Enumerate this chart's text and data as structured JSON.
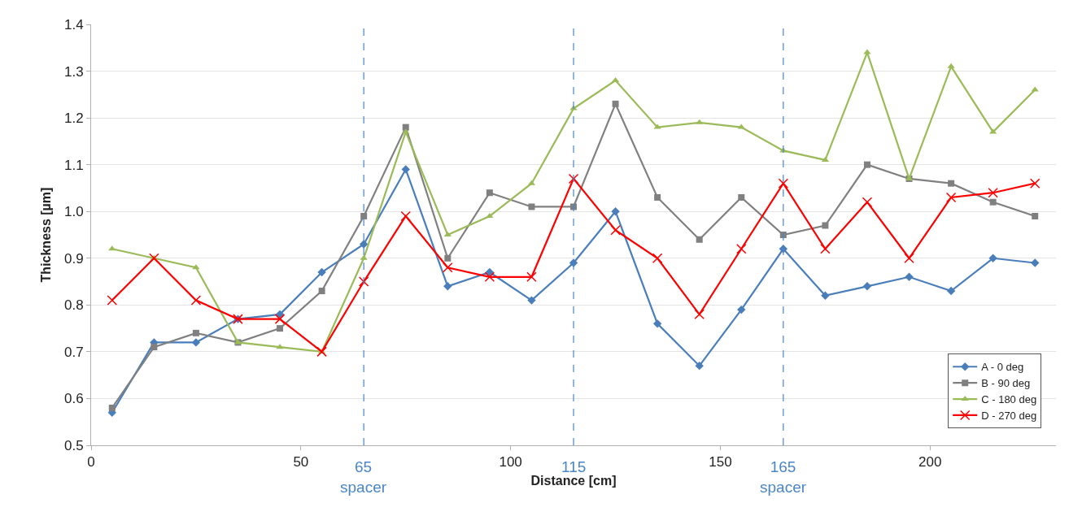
{
  "chart_data": {
    "type": "line",
    "xlabel": "Distance [cm]",
    "ylabel": "Thickness [µm]",
    "x": [
      5,
      15,
      25,
      35,
      45,
      55,
      65,
      75,
      85,
      95,
      105,
      115,
      125,
      135,
      145,
      155,
      165,
      175,
      185,
      195,
      205,
      215,
      225
    ],
    "xlim": [
      0,
      230
    ],
    "xticks": [
      0,
      50,
      100,
      150,
      200
    ],
    "ylim": [
      0.5,
      1.4
    ],
    "yticks": [
      0.5,
      0.6,
      0.7,
      0.8,
      0.9,
      {
        "value": 1.0,
        "label": "1.0"
      },
      1.1,
      1.2,
      1.3,
      1.4
    ],
    "grid": "y",
    "legend": "bottom right",
    "line_style": "solid",
    "series": [
      {
        "name": "A - 0 deg",
        "color": "#4a7ebb",
        "marker": "diamond",
        "values": [
          0.57,
          0.72,
          0.72,
          0.77,
          0.78,
          0.87,
          0.93,
          1.09,
          0.84,
          0.87,
          0.81,
          0.89,
          1.0,
          0.76,
          0.67,
          0.79,
          0.92,
          0.82,
          0.84,
          0.86,
          0.83,
          0.9,
          0.89
        ]
      },
      {
        "name": "B - 90 deg",
        "color": "#808080",
        "marker": "square",
        "values": [
          0.58,
          0.71,
          0.74,
          0.72,
          0.75,
          0.83,
          0.99,
          1.18,
          0.9,
          1.04,
          1.01,
          1.01,
          1.23,
          1.03,
          0.94,
          1.03,
          0.95,
          0.97,
          1.1,
          1.07,
          1.06,
          1.02,
          0.99
        ]
      },
      {
        "name": "C - 180 deg",
        "color": "#9bbb59",
        "marker": "triangle",
        "values": [
          0.92,
          0.9,
          0.88,
          0.72,
          0.71,
          0.7,
          0.9,
          1.17,
          0.95,
          0.99,
          1.06,
          1.22,
          1.28,
          1.18,
          1.19,
          1.18,
          1.13,
          1.11,
          1.34,
          1.07,
          1.31,
          1.17,
          1.26
        ]
      },
      {
        "name": "D - 270 deg",
        "color": "#ff0000",
        "marker": "cross",
        "values": [
          0.81,
          0.9,
          0.81,
          0.77,
          0.77,
          0.7,
          0.85,
          0.99,
          0.88,
          0.86,
          0.86,
          1.07,
          0.96,
          0.9,
          0.78,
          0.92,
          1.06,
          0.92,
          1.02,
          0.9,
          1.03,
          1.04,
          1.06
        ]
      }
    ],
    "ref_lines": [
      {
        "axis": "x",
        "value": 65,
        "label": "65\nspacer",
        "color": "#4a86c8",
        "line_style": "dashed"
      },
      {
        "axis": "x",
        "value": 115,
        "label": "115",
        "color": "#4a86c8",
        "line_style": "dashed"
      },
      {
        "axis": "x",
        "value": 165,
        "label": "165\nspacer",
        "color": "#4a86c8",
        "line_style": "dashed"
      }
    ]
  }
}
